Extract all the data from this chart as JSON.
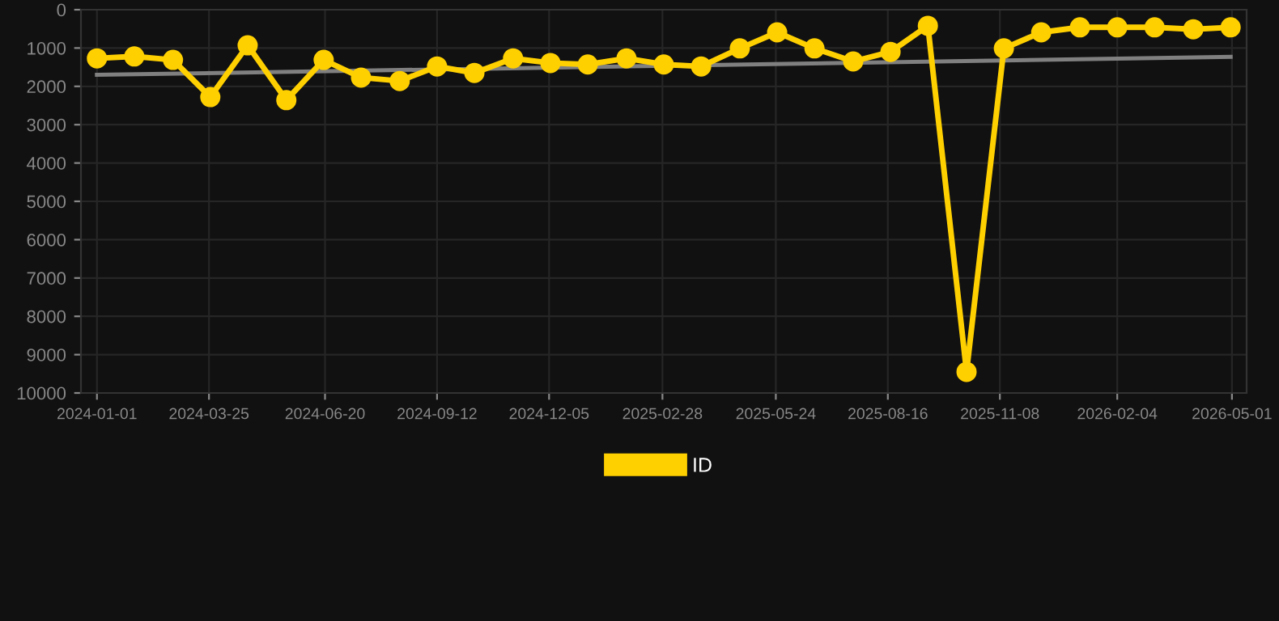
{
  "chart_data": {
    "type": "line",
    "x": [
      "2024-01-01",
      "2024-01-29",
      "2024-02-27",
      "2024-03-26",
      "2024-04-23",
      "2024-05-22",
      "2024-06-19",
      "2024-07-17",
      "2024-08-15",
      "2024-09-12",
      "2024-10-10",
      "2024-11-08",
      "2024-12-06",
      "2025-01-03",
      "2025-02-01",
      "2025-03-01",
      "2025-03-29",
      "2025-04-27",
      "2025-05-25",
      "2025-06-22",
      "2025-07-21",
      "2025-08-18",
      "2025-09-15",
      "2025-10-14",
      "2025-11-11",
      "2025-12-09",
      "2026-01-07",
      "2026-02-04",
      "2026-03-04",
      "2026-04-02",
      "2026-04-30"
    ],
    "series": [
      {
        "name": "ID",
        "color": "#ffd000",
        "marker": "circle",
        "values": [
          1270,
          1220,
          1310,
          2280,
          930,
          2360,
          1310,
          1770,
          1860,
          1480,
          1650,
          1270,
          1390,
          1430,
          1270,
          1430,
          1480,
          1010,
          590,
          1010,
          1350,
          1100,
          420,
          9450,
          1010,
          590,
          460,
          460,
          460,
          510,
          460
        ]
      },
      {
        "color": "#808080",
        "marker": "none",
        "x": [
          "2024-01-01",
          "2026-04-30"
        ],
        "values": [
          1700,
          1230
        ]
      }
    ],
    "ylim": [
      10000,
      0
    ],
    "yticks": [
      0,
      1000,
      2000,
      3000,
      4000,
      5000,
      6000,
      7000,
      8000,
      9000,
      10000
    ],
    "xlim": [
      "2023-12-20",
      "2026-05-12"
    ],
    "xticks": [
      "2024-01-01",
      "2024-03-25",
      "2024-06-20",
      "2024-09-12",
      "2024-12-05",
      "2025-02-28",
      "2025-05-24",
      "2025-08-16",
      "2025-11-08",
      "2026-02-04",
      "2026-05-01"
    ],
    "grid": true,
    "legend": "bottom",
    "line_style": "solid"
  }
}
